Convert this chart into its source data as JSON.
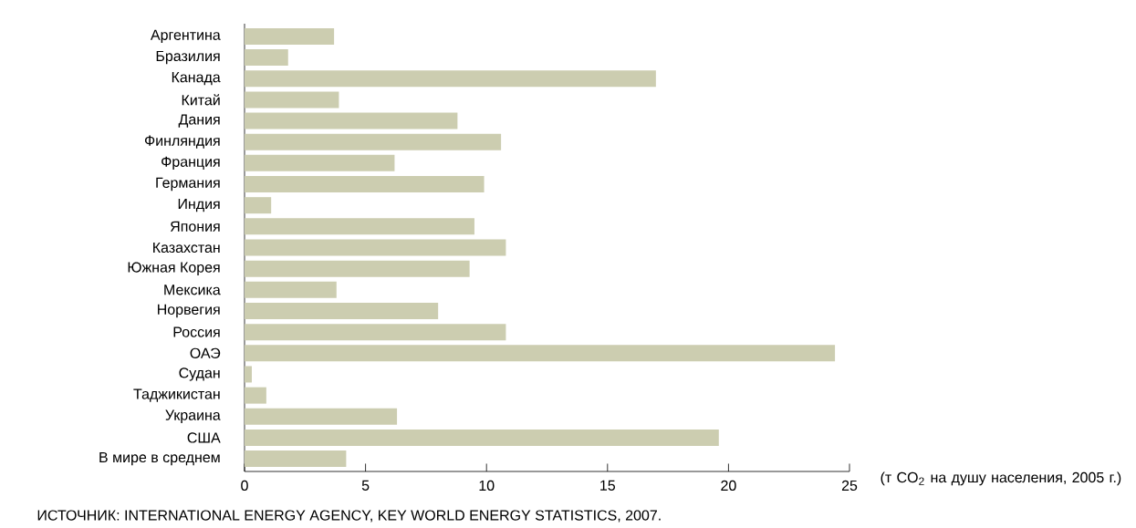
{
  "chart_data": {
    "type": "bar",
    "orientation": "horizontal",
    "categories": [
      "Аргентина",
      "Бразилия",
      "Канада",
      "Китай",
      "Дания",
      "Финляндия",
      "Франция",
      "Германия",
      "Индия",
      "Япония",
      "Казахстан",
      "Южная Корея",
      "Мексика",
      "Норвегия",
      "Россия",
      "ОАЭ",
      "Судан",
      "Таджикистан",
      "Украина",
      "США",
      "В мире в среднем"
    ],
    "values": [
      3.7,
      1.8,
      17.0,
      3.9,
      8.8,
      10.6,
      6.2,
      9.9,
      1.1,
      9.5,
      10.8,
      9.3,
      3.8,
      8.0,
      10.8,
      24.4,
      0.3,
      0.9,
      6.3,
      19.6,
      4.2
    ],
    "color": "#cccdb0",
    "xlim": [
      0,
      25
    ],
    "xticks": [
      0,
      5,
      10,
      15,
      20,
      25
    ],
    "xlabel": "(т CO$_{2}$ на душу населения, 2005 г.)",
    "annotations": [
      "ИСТОЧНИК: INTERNATIONAL ENERGY AGENCY, KEY WORLD ENERGY STATISTICS, 2007."
    ],
    "grid": false
  }
}
